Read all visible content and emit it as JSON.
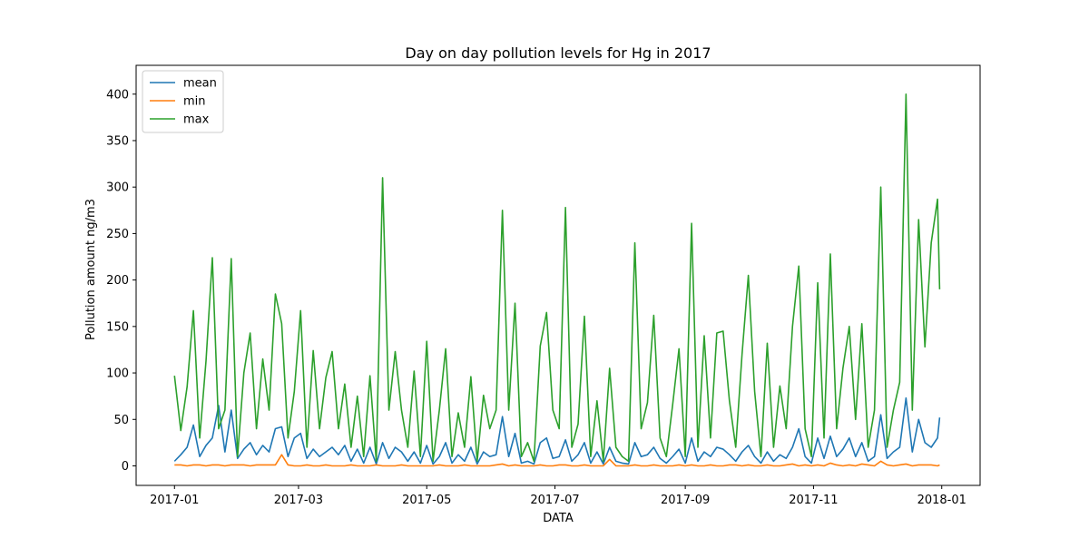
{
  "chart_data": {
    "type": "line",
    "title": "Day on day pollution levels for Hg in 2017",
    "xlabel": "DATA",
    "ylabel": "Pollution amount ng/m3",
    "legend": "upper left",
    "x": [
      0,
      3,
      6,
      9,
      12,
      15,
      18,
      21,
      24,
      27,
      30,
      33,
      36,
      39,
      42,
      45,
      48,
      51,
      54,
      57,
      60,
      63,
      66,
      69,
      72,
      75,
      78,
      81,
      84,
      87,
      90,
      93,
      96,
      99,
      102,
      105,
      108,
      111,
      114,
      117,
      120,
      123,
      126,
      129,
      132,
      135,
      138,
      141,
      144,
      147,
      150,
      153,
      156,
      159,
      162,
      165,
      168,
      171,
      174,
      177,
      180,
      183,
      186,
      189,
      192,
      195,
      198,
      201,
      204,
      207,
      210,
      213,
      216,
      219,
      222,
      225,
      228,
      231,
      234,
      237,
      240,
      243,
      246,
      249,
      252,
      255,
      258,
      261,
      264,
      267,
      270,
      273,
      276,
      279,
      282,
      285,
      288,
      291,
      294,
      297,
      300,
      303,
      306,
      309,
      312,
      315,
      318,
      321,
      324,
      327,
      330,
      333,
      336,
      339,
      342,
      345,
      348,
      351,
      354,
      357,
      360,
      363,
      364
    ],
    "series": [
      {
        "name": "mean",
        "color": "#1f77b4",
        "values": [
          5,
          12,
          20,
          44,
          10,
          22,
          30,
          65,
          15,
          60,
          8,
          18,
          25,
          12,
          22,
          15,
          40,
          42,
          10,
          30,
          35,
          8,
          18,
          10,
          15,
          20,
          12,
          22,
          5,
          18,
          3,
          20,
          2,
          25,
          8,
          20,
          15,
          5,
          15,
          3,
          22,
          2,
          10,
          25,
          3,
          12,
          5,
          20,
          2,
          15,
          10,
          12,
          53,
          10,
          35,
          3,
          5,
          2,
          25,
          30,
          8,
          10,
          28,
          5,
          12,
          25,
          3,
          15,
          2,
          20,
          5,
          3,
          2,
          25,
          10,
          12,
          20,
          8,
          3,
          10,
          18,
          3,
          30,
          5,
          15,
          10,
          20,
          18,
          12,
          5,
          15,
          22,
          10,
          3,
          15,
          5,
          12,
          8,
          20,
          40,
          10,
          3,
          30,
          8,
          32,
          10,
          18,
          30,
          10,
          25,
          5,
          10,
          55,
          8,
          15,
          20,
          73,
          15,
          50,
          25,
          20,
          30,
          52
        ]
      },
      {
        "name": "min",
        "color": "#ff7f0e",
        "values": [
          1,
          1,
          0,
          1,
          1,
          0,
          1,
          1,
          0,
          1,
          1,
          1,
          0,
          1,
          1,
          1,
          1,
          12,
          1,
          0,
          0,
          1,
          0,
          0,
          1,
          0,
          0,
          0,
          1,
          0,
          0,
          0,
          1,
          0,
          0,
          0,
          1,
          0,
          0,
          0,
          0,
          0,
          1,
          0,
          0,
          0,
          1,
          0,
          0,
          0,
          0,
          1,
          2,
          0,
          1,
          0,
          0,
          0,
          1,
          0,
          0,
          1,
          1,
          0,
          0,
          1,
          0,
          0,
          0,
          7,
          0,
          0,
          0,
          1,
          0,
          0,
          1,
          0,
          0,
          0,
          1,
          0,
          1,
          0,
          0,
          1,
          0,
          0,
          1,
          1,
          0,
          1,
          0,
          0,
          1,
          0,
          0,
          1,
          2,
          0,
          1,
          0,
          1,
          0,
          3,
          1,
          0,
          1,
          0,
          2,
          1,
          0,
          5,
          1,
          0,
          1,
          2,
          0,
          1,
          1,
          1,
          0,
          1
        ]
      },
      {
        "name": "max",
        "color": "#2ca02c",
        "values": [
          97,
          38,
          85,
          167,
          30,
          113,
          224,
          40,
          60,
          223,
          10,
          100,
          143,
          40,
          115,
          60,
          185,
          153,
          30,
          80,
          167,
          20,
          124,
          40,
          95,
          123,
          40,
          88,
          20,
          75,
          10,
          97,
          5,
          310,
          60,
          123,
          60,
          20,
          102,
          10,
          134,
          5,
          60,
          126,
          10,
          57,
          20,
          96,
          5,
          76,
          40,
          60,
          275,
          60,
          175,
          10,
          25,
          5,
          129,
          165,
          60,
          40,
          278,
          20,
          45,
          161,
          10,
          70,
          5,
          105,
          20,
          10,
          5,
          240,
          40,
          68,
          162,
          30,
          10,
          66,
          126,
          10,
          261,
          20,
          140,
          30,
          143,
          145,
          70,
          20,
          120,
          205,
          80,
          10,
          132,
          20,
          86,
          40,
          150,
          215,
          40,
          10,
          197,
          30,
          228,
          40,
          105,
          150,
          50,
          153,
          20,
          60,
          300,
          20,
          60,
          90,
          400,
          60,
          265,
          128,
          240,
          287,
          190
        ]
      }
    ],
    "xlim": [
      -18.25,
      383.25
    ],
    "xticks": [
      {
        "value": 0,
        "label": "2017-01"
      },
      {
        "value": 59,
        "label": "2017-03"
      },
      {
        "value": 120,
        "label": "2017-05"
      },
      {
        "value": 181,
        "label": "2017-07"
      },
      {
        "value": 243,
        "label": "2017-09"
      },
      {
        "value": 304,
        "label": "2017-11"
      },
      {
        "value": 365,
        "label": "2018-01"
      }
    ],
    "ylim": [
      -21,
      431
    ],
    "yticks": [
      0,
      50,
      100,
      150,
      200,
      250,
      300,
      350,
      400
    ]
  }
}
